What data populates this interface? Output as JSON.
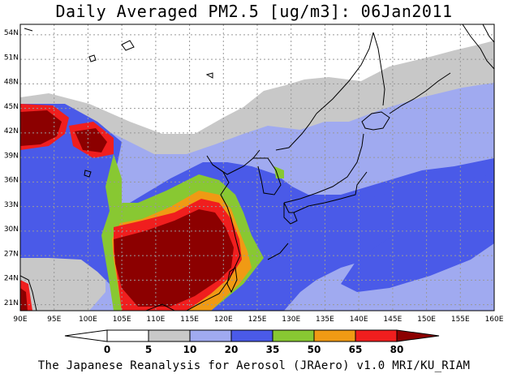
{
  "title": "Daily Averaged PM2.5 [ug/m3]: 06Jan2011",
  "footer": "The Japanese Reanalysis for Aerosol (JRAero) v1.0 MRI/KU_RIAM",
  "map": {
    "lon_range": [
      90,
      160
    ],
    "lat_range": [
      20,
      55
    ],
    "lon_ticks": [
      "90E",
      "95E",
      "100E",
      "105E",
      "110E",
      "115E",
      "120E",
      "125E",
      "130E",
      "135E",
      "140E",
      "145E",
      "150E",
      "155E",
      "160E"
    ],
    "lat_ticks": [
      "21N",
      "24N",
      "27N",
      "30N",
      "33N",
      "36N",
      "39N",
      "42N",
      "45N",
      "48N",
      "51N",
      "54N"
    ],
    "grid": true
  },
  "colorbar": {
    "levels": [
      "0",
      "5",
      "10",
      "20",
      "35",
      "50",
      "65",
      "80"
    ],
    "colors": [
      "#ffffff",
      "#ffffff",
      "#c8c8c8",
      "#a0aaf0",
      "#4a5ae8",
      "#88c832",
      "#f09a14",
      "#f01e1e",
      "#8c0000"
    ]
  }
}
